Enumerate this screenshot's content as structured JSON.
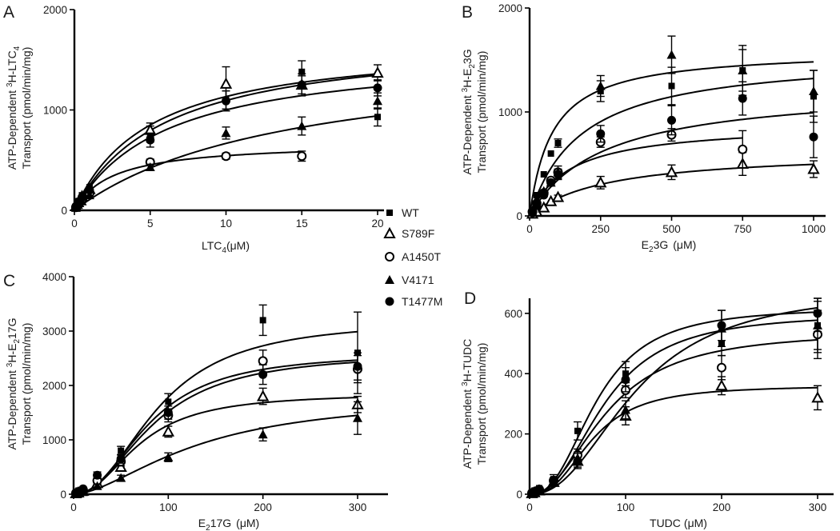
{
  "figure": {
    "legend": [
      {
        "label": "WT",
        "marker": "square"
      },
      {
        "label": "S789F",
        "marker": "triangle-open"
      },
      {
        "label": "A1450T",
        "marker": "circle-open"
      },
      {
        "label": "V4171",
        "marker": "triangle-filled"
      },
      {
        "label": "T1477M",
        "marker": "circle-filled"
      }
    ],
    "colors": {
      "ink": "#000000",
      "background": "#ffffff"
    }
  },
  "chart_data": [
    {
      "type": "scatter",
      "panel": "A",
      "xlabel": "LTC",
      "xlabel_sub": "4",
      "xlabel_unit": "(μM)",
      "ylabel_line1_pre": "ATP-Dependent ",
      "ylabel_line1_sup": "3",
      "ylabel_line1_post": "H-LTC",
      "ylabel_line1_sub": "4",
      "ylabel_line2": "Transport (pmol/min/mg)",
      "xlim": [
        0,
        20
      ],
      "ylim": [
        0,
        2000
      ],
      "xticks": [
        0,
        5,
        10,
        15,
        20
      ],
      "yticks": [
        0,
        1000,
        2000
      ],
      "series": [
        {
          "name": "WT",
          "x": [
            0.1,
            0.25,
            0.5,
            1,
            5,
            10,
            15,
            20
          ],
          "y": [
            40,
            90,
            150,
            230,
            760,
            1100,
            1380,
            930
          ],
          "err": [
            0,
            0,
            0,
            0,
            80,
            90,
            110,
            90
          ],
          "fit": {
            "vmax": 1750,
            "km": 6
          }
        },
        {
          "name": "S789F",
          "x": [
            0.1,
            0.25,
            0.5,
            1,
            5,
            10,
            15,
            20
          ],
          "y": [
            40,
            80,
            140,
            210,
            800,
            1260,
            1250,
            1370
          ],
          "err": [
            0,
            0,
            0,
            0,
            70,
            170,
            110,
            80
          ],
          "fit": {
            "vmax": 1700,
            "km": 5
          }
        },
        {
          "name": "A1450T",
          "x": [
            0.1,
            0.25,
            0.5,
            1,
            5,
            10,
            15
          ],
          "y": [
            30,
            60,
            110,
            170,
            480,
            540,
            540
          ],
          "err": [
            0,
            0,
            0,
            0,
            30,
            30,
            50
          ],
          "fit": {
            "vmax": 680,
            "km": 2.5
          }
        },
        {
          "name": "V4171",
          "x": [
            0.1,
            0.25,
            0.5,
            1,
            5,
            10,
            15,
            20
          ],
          "y": [
            25,
            55,
            90,
            150,
            430,
            770,
            840,
            1090
          ],
          "err": [
            0,
            0,
            0,
            0,
            30,
            60,
            90,
            80
          ],
          "fit": {
            "vmax": 1600,
            "km": 14
          }
        },
        {
          "name": "T1477M",
          "x": [
            0.1,
            0.25,
            0.5,
            1,
            5,
            10,
            15,
            20
          ],
          "y": [
            40,
            85,
            130,
            200,
            700,
            1090,
            1250,
            1220
          ],
          "err": [
            0,
            0,
            0,
            0,
            70,
            100,
            90,
            80
          ],
          "fit": {
            "vmax": 1600,
            "km": 6
          }
        }
      ]
    },
    {
      "type": "scatter",
      "panel": "B",
      "xlabel": "E",
      "xlabel_sub": "2",
      "xlabel_post": "3G",
      "xlabel_unit": "(μM)",
      "ylabel_line1_pre": "ATP-Dependent ",
      "ylabel_line1_sup": "3",
      "ylabel_line1_post": "H-E",
      "ylabel_line1_sub": "2",
      "ylabel_line1_post2": "3G",
      "ylabel_line2": "Transport (pmol/min/mg)",
      "xlim": [
        0,
        1000
      ],
      "ylim": [
        0,
        2000
      ],
      "xticks": [
        0,
        250,
        500,
        750,
        1000
      ],
      "yticks": [
        0,
        1000,
        2000
      ],
      "series": [
        {
          "name": "WT",
          "x": [
            10,
            25,
            50,
            75,
            100,
            250,
            500,
            750,
            1000
          ],
          "y": [
            60,
            200,
            400,
            600,
            700,
            1200,
            1250,
            1400,
            1150
          ],
          "err": [
            0,
            0,
            0,
            0,
            40,
            100,
            180,
            200,
            250
          ],
          "fit": {
            "vmax": 1600,
            "km": 80
          }
        },
        {
          "name": "S789F",
          "x": [
            10,
            25,
            50,
            75,
            100,
            250,
            500,
            750,
            1000
          ],
          "y": [
            20,
            40,
            80,
            140,
            180,
            320,
            420,
            500,
            450
          ],
          "err": [
            0,
            0,
            0,
            0,
            20,
            60,
            70,
            110,
            80
          ],
          "fit": {
            "vmax": 630,
            "km": 270
          }
        },
        {
          "name": "A1450T",
          "x": [
            10,
            25,
            50,
            75,
            100,
            250,
            500,
            750
          ],
          "y": [
            40,
            120,
            220,
            340,
            420,
            710,
            780,
            640
          ],
          "err": [
            0,
            0,
            0,
            0,
            30,
            50,
            60,
            180
          ],
          "fit": {
            "vmax": 890,
            "km": 140
          }
        },
        {
          "name": "V4171",
          "x": [
            10,
            25,
            50,
            75,
            100,
            250,
            500,
            750,
            1000
          ],
          "y": [
            40,
            160,
            240,
            320,
            420,
            1250,
            1550,
            1400,
            1200
          ],
          "err": [
            0,
            0,
            0,
            0,
            60,
            100,
            180,
            240,
            200
          ],
          "fit": {
            "vmax": 1560,
            "km": 180
          }
        },
        {
          "name": "T1477M",
          "x": [
            10,
            25,
            50,
            75,
            100,
            250,
            500,
            750,
            1000
          ],
          "y": [
            30,
            100,
            200,
            320,
            400,
            790,
            920,
            1130,
            760
          ],
          "err": [
            0,
            0,
            0,
            0,
            50,
            80,
            140,
            160,
            200
          ],
          "fit": {
            "vmax": 1250,
            "km": 260
          }
        }
      ]
    },
    {
      "type": "scatter",
      "panel": "C",
      "xlabel": "E",
      "xlabel_sub": "2",
      "xlabel_post": "17G",
      "xlabel_unit": "(μM)",
      "ylabel_line1_pre": "ATP-Dependent ",
      "ylabel_line1_sup": "3",
      "ylabel_line1_post": "H-E",
      "ylabel_line1_sub": "2",
      "ylabel_line1_post2": "17G",
      "ylabel_line2": "Transport (pmol/min/mg)",
      "xlim": [
        0,
        300
      ],
      "ylim": [
        0,
        4000
      ],
      "xticks": [
        0,
        100,
        200,
        300
      ],
      "yticks": [
        0,
        1000,
        2000,
        3000,
        4000
      ],
      "series": [
        {
          "name": "WT",
          "x": [
            2.5,
            5,
            10,
            25,
            50,
            100,
            200,
            300
          ],
          "y": [
            20,
            40,
            80,
            300,
            800,
            1700,
            3200,
            2600
          ],
          "err": [
            0,
            0,
            0,
            60,
            80,
            150,
            280,
            750
          ],
          "fit": {
            "vmax": 3200,
            "km": 90,
            "n": 2.2
          }
        },
        {
          "name": "S789F",
          "x": [
            2.5,
            5,
            10,
            25,
            50,
            100,
            200,
            300
          ],
          "y": [
            15,
            30,
            60,
            200,
            500,
            1150,
            1800,
            1650
          ],
          "err": [
            0,
            0,
            0,
            40,
            60,
            100,
            150,
            150
          ],
          "fit": {
            "vmax": 1850,
            "km": 70,
            "n": 2.2
          }
        },
        {
          "name": "A1450T",
          "x": [
            2.5,
            5,
            10,
            25,
            50,
            100,
            200,
            300
          ],
          "y": [
            20,
            40,
            80,
            250,
            600,
            1450,
            2450,
            2300
          ],
          "err": [
            0,
            0,
            0,
            50,
            80,
            120,
            200,
            250
          ],
          "fit": {
            "vmax": 2600,
            "km": 80,
            "n": 2.2
          }
        },
        {
          "name": "V4171",
          "x": [
            2.5,
            5,
            10,
            25,
            50,
            100,
            200,
            300
          ],
          "y": [
            10,
            20,
            40,
            150,
            300,
            680,
            1100,
            1400
          ],
          "err": [
            0,
            0,
            0,
            30,
            50,
            80,
            120,
            300
          ],
          "fit": {
            "vmax": 1800,
            "km": 130,
            "n": 1.7
          }
        },
        {
          "name": "T1477M",
          "x": [
            2.5,
            5,
            10,
            25,
            50,
            100,
            200,
            300
          ],
          "y": [
            20,
            50,
            100,
            350,
            650,
            1500,
            2200,
            2350
          ],
          "err": [
            0,
            0,
            0,
            60,
            80,
            120,
            180,
            250
          ],
          "fit": {
            "vmax": 2600,
            "km": 85,
            "n": 2.1
          }
        }
      ]
    },
    {
      "type": "scatter",
      "panel": "D",
      "xlabel": "TUDC",
      "xlabel_unit": "(μM)",
      "ylabel_line1_pre": "ATP-Dependent ",
      "ylabel_line1_sup": "3",
      "ylabel_line1_post": "H-TUDC",
      "ylabel_line2": "Transport (pmol/min/mg)",
      "xlim": [
        0,
        300
      ],
      "ylim": [
        0,
        650
      ],
      "xticks": [
        0,
        100,
        200,
        300
      ],
      "yticks": [
        0,
        200,
        400,
        600
      ],
      "series": [
        {
          "name": "WT",
          "x": [
            2.5,
            5,
            10,
            25,
            50,
            100,
            200,
            300
          ],
          "y": [
            5,
            10,
            20,
            50,
            210,
            400,
            500,
            560
          ],
          "err": [
            0,
            0,
            0,
            15,
            30,
            40,
            40,
            80
          ],
          "fit": {
            "vmax": 620,
            "km": 70,
            "n": 2.5
          }
        },
        {
          "name": "S789F",
          "x": [
            2.5,
            5,
            10,
            25,
            50,
            100,
            200,
            300
          ],
          "y": [
            3,
            6,
            12,
            40,
            110,
            260,
            360,
            320
          ],
          "err": [
            0,
            0,
            0,
            10,
            20,
            30,
            30,
            40
          ],
          "fit": {
            "vmax": 360,
            "km": 65,
            "n": 2.6
          }
        },
        {
          "name": "A1450T",
          "x": [
            2.5,
            5,
            10,
            25,
            50,
            100,
            200,
            300
          ],
          "y": [
            4,
            8,
            16,
            45,
            130,
            345,
            420,
            530
          ],
          "err": [
            0,
            0,
            0,
            10,
            20,
            25,
            40,
            80
          ],
          "fit": {
            "vmax": 540,
            "km": 80,
            "n": 2.2
          }
        },
        {
          "name": "V4171",
          "x": [
            2.5,
            5,
            10,
            25,
            50,
            100,
            200,
            300
          ],
          "y": [
            3,
            7,
            14,
            40,
            120,
            280,
            550,
            560
          ],
          "err": [
            0,
            0,
            0,
            10,
            20,
            30,
            60,
            90
          ],
          "fit": {
            "vmax": 680,
            "km": 110,
            "n": 2.3
          }
        },
        {
          "name": "T1477M",
          "x": [
            2.5,
            5,
            10,
            25,
            50,
            100,
            200,
            300
          ],
          "y": [
            4,
            8,
            15,
            42,
            110,
            380,
            560,
            600
          ],
          "err": [
            0,
            0,
            0,
            12,
            25,
            40,
            50,
            60
          ],
          "fit": {
            "vmax": 600,
            "km": 78,
            "n": 2.4
          }
        }
      ]
    }
  ]
}
